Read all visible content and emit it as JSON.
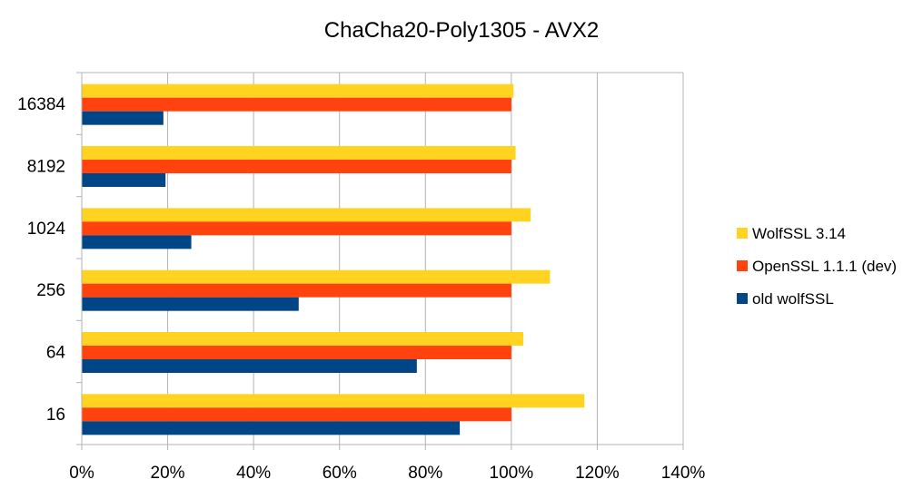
{
  "chart_data": {
    "type": "bar",
    "orientation": "horizontal",
    "title": "ChaCha20-Poly1305 - AVX2",
    "xlabel": "",
    "ylabel": "",
    "categories": [
      "16384",
      "8192",
      "1024",
      "256",
      "64",
      "16"
    ],
    "series": [
      {
        "name": "WolfSSL 3.14",
        "color": "#FFD320",
        "values": [
          100.5,
          101.0,
          104.5,
          109.0,
          102.8,
          117.0
        ]
      },
      {
        "name": "OpenSSL 1.1.1 (dev)",
        "color": "#FF420E",
        "values": [
          100,
          100,
          100,
          100,
          100,
          100
        ]
      },
      {
        "name": "old wolfSSL",
        "color": "#004586",
        "values": [
          19.0,
          19.5,
          25.5,
          50.5,
          78.0,
          88.0
        ]
      }
    ],
    "xlim": [
      0,
      140
    ],
    "xticks": [
      "0%",
      "20%",
      "40%",
      "60%",
      "80%",
      "100%",
      "120%",
      "140%"
    ],
    "grid": "vertical",
    "legend": "right"
  }
}
